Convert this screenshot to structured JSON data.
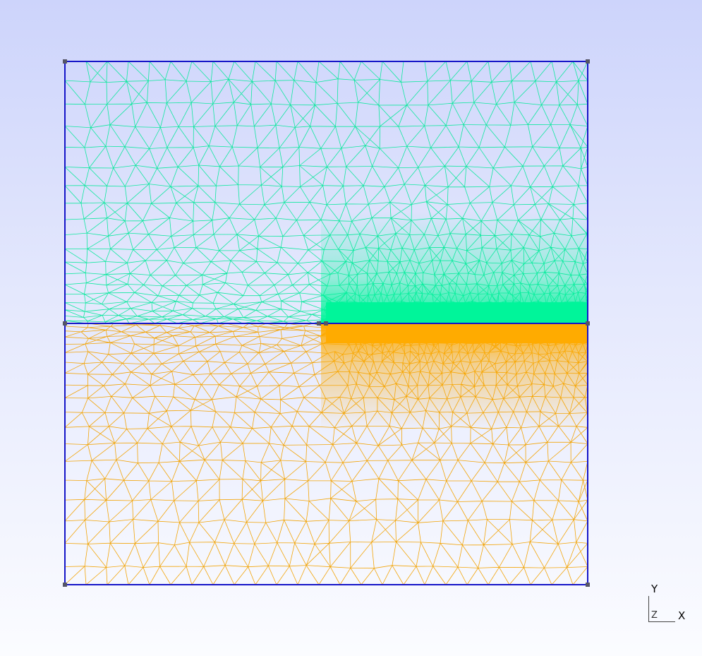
{
  "view": {
    "background_top": "#cdd4fb",
    "background_bottom": "#fbfcff"
  },
  "mesh": {
    "upper_region": {
      "edge_color": "#10e8a0",
      "dense_fill": "#00f59a"
    },
    "lower_region": {
      "edge_color": "#f2a50a",
      "dense_fill": "#ffab00"
    },
    "boundary_color": "#1515c8",
    "vertex_color": "#555566"
  },
  "axes": {
    "y": "Y",
    "z": "Z",
    "x": "X"
  }
}
